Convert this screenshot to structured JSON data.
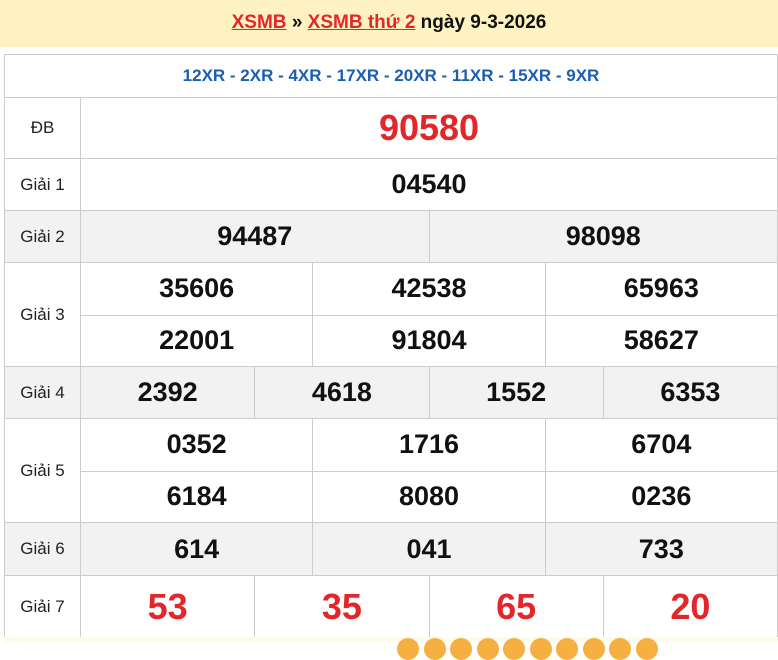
{
  "header": {
    "link1": "XSMB",
    "sep": "»",
    "link2": "XSMB thứ 2",
    "date_text": "ngày 9-3-2026"
  },
  "codes": "12XR - 2XR - 4XR - 17XR - 20XR - 11XR - 15XR - 9XR",
  "prizes": [
    {
      "label": "ĐB",
      "rows": [
        [
          "90580"
        ]
      ]
    },
    {
      "label": "Giải 1",
      "rows": [
        [
          "04540"
        ]
      ]
    },
    {
      "label": "Giải 2",
      "rows": [
        [
          "94487",
          "98098"
        ]
      ]
    },
    {
      "label": "Giải 3",
      "rows": [
        [
          "35606",
          "42538",
          "65963"
        ],
        [
          "22001",
          "91804",
          "58627"
        ]
      ]
    },
    {
      "label": "Giải 4",
      "rows": [
        [
          "2392",
          "4618",
          "1552",
          "6353"
        ]
      ]
    },
    {
      "label": "Giải 5",
      "rows": [
        [
          "0352",
          "1716",
          "6704"
        ],
        [
          "6184",
          "8080",
          "0236"
        ]
      ]
    },
    {
      "label": "Giải 6",
      "rows": [
        [
          "614",
          "041",
          "733"
        ]
      ]
    },
    {
      "label": "Giải 7",
      "rows": [
        [
          "53",
          "35",
          "65",
          "20"
        ]
      ]
    }
  ],
  "colors": {
    "accent_red": "#e3262a",
    "code_blue": "#1a5eb0",
    "header_bg": "#fdf2c0"
  }
}
